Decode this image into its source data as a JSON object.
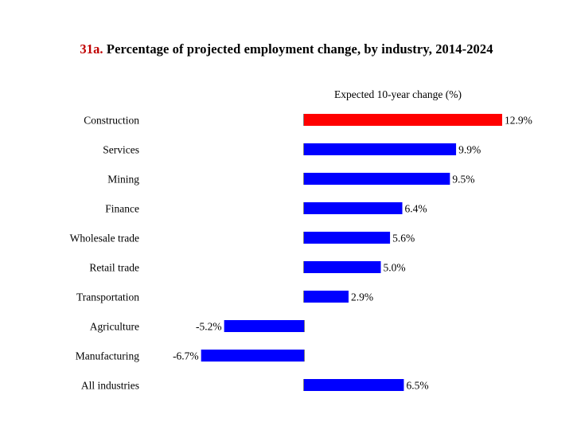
{
  "title": {
    "number": "31a.",
    "text": "Percentage of projected employment change, by industry, 2014-2024"
  },
  "chart_data": {
    "type": "bar",
    "orientation": "horizontal",
    "title": "31a. Percentage of projected employment change, by industry, 2014-2024",
    "axis_label": "Expected 10-year change (%)",
    "categories": [
      "Construction",
      "Services",
      "Mining",
      "Finance",
      "Wholesale trade",
      "Retail trade",
      "Transportation",
      "Agriculture",
      "Manufacturing",
      "All industries"
    ],
    "values": [
      12.9,
      9.9,
      9.5,
      6.4,
      5.6,
      5.0,
      2.9,
      -5.2,
      -6.7,
      6.5
    ],
    "labels": [
      "12.9%",
      "9.9%",
      "9.5%",
      "6.4%",
      "5.6%",
      "5.0%",
      "2.9%",
      "-5.2%",
      "-6.7%",
      "6.5%"
    ],
    "colors": [
      "#ff0000",
      "#0000ff",
      "#0000ff",
      "#0000ff",
      "#0000ff",
      "#0000ff",
      "#0000ff",
      "#0000ff",
      "#0000ff",
      "#0000ff"
    ],
    "legend": false,
    "grid": false
  }
}
